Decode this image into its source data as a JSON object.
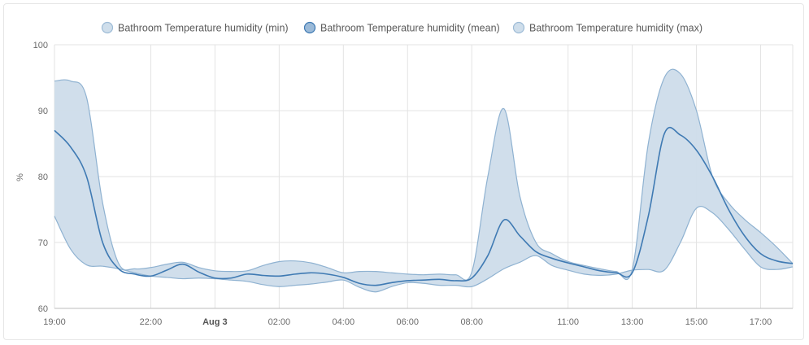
{
  "chart_data": {
    "type": "area",
    "ylabel": "%",
    "ylim": [
      60,
      100
    ],
    "yticks": [
      60,
      70,
      80,
      90,
      100
    ],
    "xlim": [
      "19:00",
      "18:00"
    ],
    "xticks": [
      {
        "t": 0,
        "label": "19:00",
        "bold": false
      },
      {
        "t": 3,
        "label": "22:00",
        "bold": false
      },
      {
        "t": 5,
        "label": "Aug 3",
        "bold": true
      },
      {
        "t": 7,
        "label": "02:00",
        "bold": false
      },
      {
        "t": 9,
        "label": "04:00",
        "bold": false
      },
      {
        "t": 11,
        "label": "06:00",
        "bold": false
      },
      {
        "t": 13,
        "label": "08:00",
        "bold": false
      },
      {
        "t": 16,
        "label": "11:00",
        "bold": false
      },
      {
        "t": 18,
        "label": "13:00",
        "bold": false
      },
      {
        "t": 20,
        "label": "15:00",
        "bold": false
      },
      {
        "t": 22,
        "label": "17:00",
        "bold": false
      }
    ],
    "x_hours": [
      0,
      0.5,
      1,
      1.5,
      2,
      2.5,
      3,
      3.5,
      4,
      4.5,
      5,
      5.5,
      6,
      6.5,
      7,
      7.5,
      8,
      8.5,
      9,
      9.5,
      10,
      10.5,
      11,
      11.5,
      12,
      12.5,
      13,
      13.5,
      14,
      14.5,
      15,
      15.5,
      16,
      16.5,
      17,
      17.5,
      18,
      18.5,
      19,
      19.5,
      20,
      20.5,
      21,
      21.5,
      22,
      22.5,
      23
    ],
    "series": [
      {
        "name": "Bathroom Temperature humidity (min)",
        "values": [
          74,
          69,
          66.6,
          66.4,
          66,
          65.4,
          64.9,
          64.7,
          64.5,
          64.6,
          64.5,
          64.3,
          64.1,
          63.6,
          63.3,
          63.5,
          63.7,
          64,
          64.3,
          63.2,
          62.5,
          63.3,
          63.9,
          63.8,
          63.5,
          63.5,
          63.3,
          64.5,
          66,
          67,
          68,
          66.5,
          65.8,
          65.2,
          65,
          65.2,
          65.8,
          65.9,
          65.8,
          70,
          75.2,
          74.5,
          72,
          69,
          66.3,
          65.9,
          66.3
        ],
        "color": "#a9c4da"
      },
      {
        "name": "Bathroom Temperature humidity (mean)",
        "values": [
          87,
          84.5,
          80,
          70,
          66,
          65.2,
          64.9,
          65.8,
          66.7,
          65.5,
          64.6,
          64.6,
          65.2,
          65,
          64.9,
          65.2,
          65.4,
          65.2,
          64.7,
          63.8,
          63.5,
          63.9,
          64.2,
          64.3,
          64.4,
          64.2,
          64.6,
          68,
          73.4,
          71,
          68.6,
          67.6,
          66.9,
          66.3,
          65.7,
          65.4,
          65.4,
          74,
          86.5,
          86.3,
          84,
          80,
          75,
          71,
          68.3,
          67.2,
          66.8
        ],
        "color": "#3f7ab3"
      },
      {
        "name": "Bathroom Temperature humidity (max)",
        "values": [
          94.5,
          94.5,
          92,
          76,
          66.8,
          66,
          66.2,
          66.7,
          67,
          66.2,
          65.7,
          65.6,
          65.7,
          66.5,
          67.1,
          67.2,
          66.9,
          66.2,
          65.4,
          65.6,
          65.6,
          65.4,
          65.2,
          65.1,
          65.2,
          65.1,
          65.5,
          80,
          90.3,
          77,
          70,
          68.3,
          67.1,
          66.5,
          66,
          65.6,
          65.9,
          85,
          95,
          95.6,
          90,
          80,
          76,
          73.5,
          71.5,
          69.3,
          66.8
        ],
        "color": "#a9c4da"
      }
    ],
    "legend_position": "top",
    "grid": true,
    "band_fill": "#cddcea"
  }
}
